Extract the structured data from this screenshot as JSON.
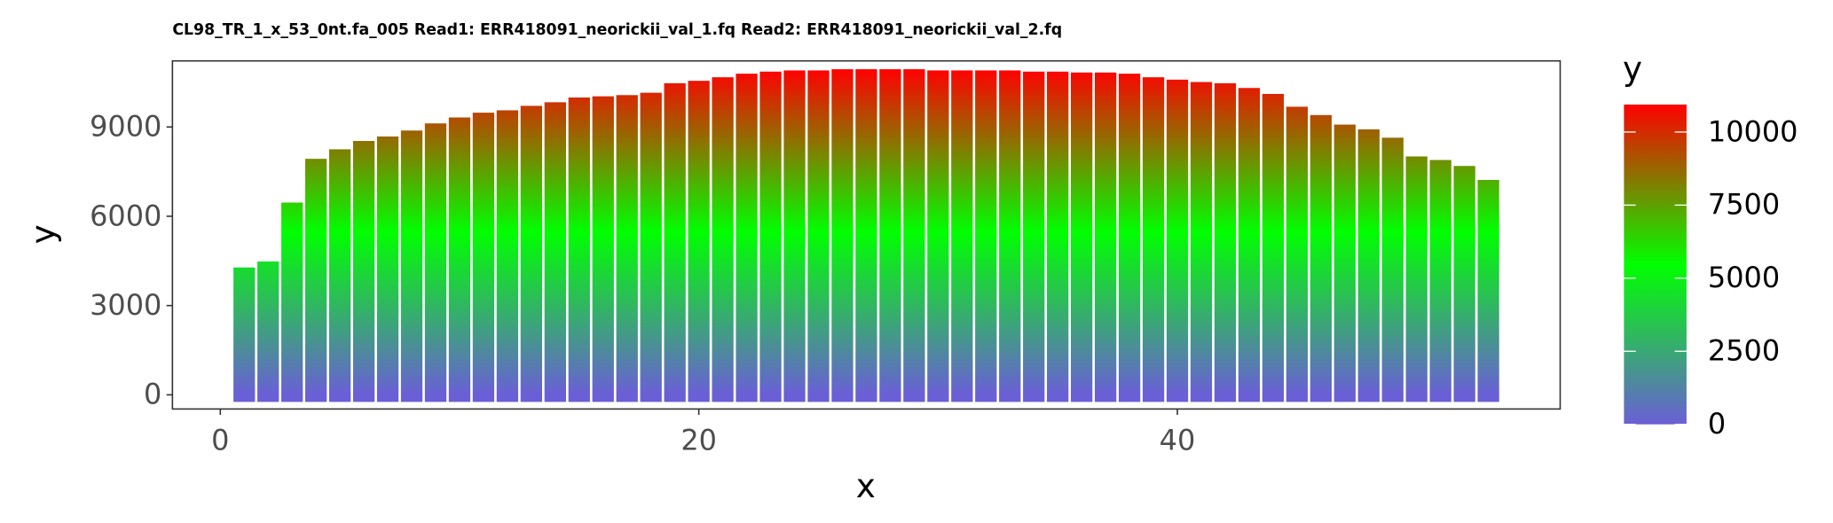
{
  "chart_data": {
    "type": "bar",
    "title": "CL98_TR_1_x_53_0nt.fa_005 Read1: ERR418091_neorickii_val_1.fq Read2: ERR418091_neorickii_val_2.fq",
    "x_label": "x",
    "y_label": "y",
    "legend_title": "y",
    "x": [
      1,
      2,
      3,
      4,
      5,
      6,
      7,
      8,
      9,
      10,
      11,
      12,
      13,
      14,
      15,
      16,
      17,
      18,
      19,
      20,
      21,
      22,
      23,
      24,
      25,
      26,
      27,
      28,
      29,
      30,
      31,
      32,
      33,
      34,
      35,
      36,
      37,
      38,
      39,
      40,
      41,
      42,
      43,
      44,
      45,
      46,
      47,
      48,
      49,
      50,
      51,
      52,
      53
    ],
    "values": [
      4280,
      4480,
      6460,
      7930,
      8250,
      8530,
      8680,
      8880,
      9120,
      9320,
      9480,
      9560,
      9710,
      9830,
      9990,
      10030,
      10070,
      10150,
      10470,
      10550,
      10670,
      10790,
      10860,
      10900,
      10900,
      10940,
      10940,
      10940,
      10940,
      10900,
      10900,
      10900,
      10900,
      10860,
      10860,
      10830,
      10830,
      10790,
      10670,
      10590,
      10510,
      10470,
      10310,
      10110,
      9680,
      9400,
      9080,
      8920,
      8640,
      8010,
      7890,
      7690,
      7220
    ],
    "gradient": [
      "#6a5fd6",
      "#00ff00",
      "#ff0000"
    ],
    "xlim": [
      -2,
      56
    ],
    "ylim": [
      -476,
      11220
    ],
    "xticks": [
      0,
      20,
      40
    ],
    "yticks": [
      0,
      3000,
      6000,
      9000
    ],
    "legend_ticks": [
      0,
      2500,
      5000,
      7500,
      10000
    ],
    "grid": false
  }
}
